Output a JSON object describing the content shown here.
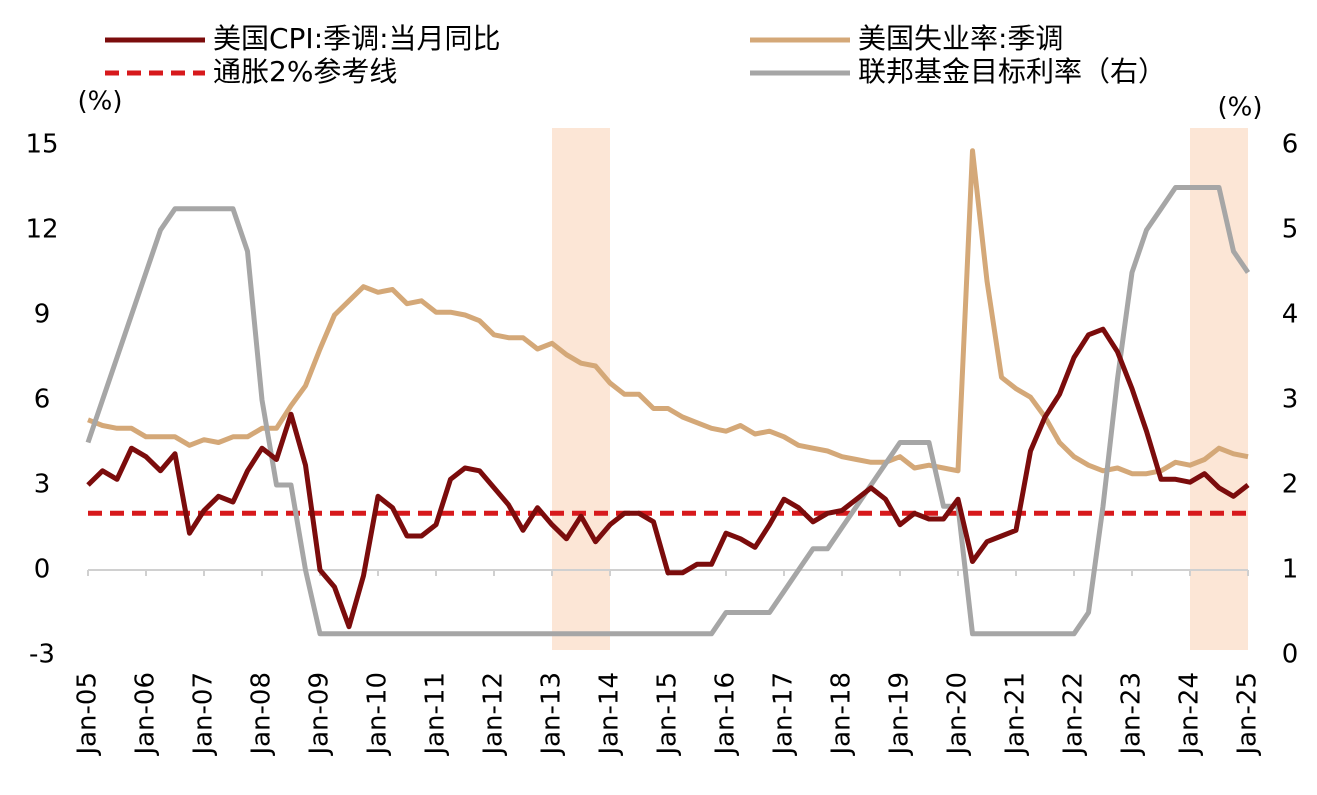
{
  "chart_data": {
    "type": "line",
    "y_label": "(%)",
    "y2_label": "(%)",
    "categories": [
      "Jan-05",
      null,
      null,
      null,
      "Jan-06",
      null,
      null,
      null,
      "Jan-07",
      null,
      null,
      null,
      "Jan-08",
      null,
      null,
      null,
      "Jan-09",
      null,
      null,
      null,
      "Jan-10",
      null,
      null,
      null,
      "Jan-11",
      null,
      null,
      null,
      "Jan-12",
      null,
      null,
      null,
      "Jan-13",
      null,
      null,
      null,
      "Jan-14",
      null,
      null,
      null,
      "Jan-15",
      null,
      null,
      null,
      "Jan-16",
      null,
      null,
      null,
      "Jan-17",
      null,
      null,
      null,
      "Jan-18",
      null,
      null,
      null,
      "Jan-19",
      null,
      null,
      null,
      "Jan-20",
      null,
      null,
      null,
      "Jan-21",
      null,
      null,
      null,
      "Jan-22",
      null,
      null,
      null,
      "Jan-23",
      null,
      null,
      null,
      "Jan-24",
      null,
      null,
      null,
      "Jan-25"
    ],
    "ylim": [
      -3,
      15
    ],
    "yticks": [
      -3,
      0,
      3,
      6,
      9,
      12,
      15
    ],
    "y2lim": [
      0,
      6
    ],
    "y2ticks": [
      0,
      1,
      2,
      3,
      4,
      5,
      6
    ],
    "highlight_ranges": [
      {
        "from": "Jan-13",
        "to": "Jan-14"
      },
      {
        "from": "Jan-24",
        "to": "Jan-25"
      }
    ],
    "series": [
      {
        "name": "美国CPI:季调:当月同比",
        "color": "#7b0c0c",
        "dash": false,
        "values": [
          3.0,
          3.5,
          3.2,
          4.3,
          4.0,
          3.5,
          4.1,
          1.3,
          2.1,
          2.6,
          2.4,
          3.5,
          4.3,
          3.9,
          5.5,
          3.7,
          0.0,
          -0.6,
          -2.0,
          -0.2,
          2.6,
          2.2,
          1.2,
          1.2,
          1.6,
          3.2,
          3.6,
          3.5,
          2.9,
          2.3,
          1.4,
          2.2,
          1.6,
          1.1,
          1.9,
          1.0,
          1.6,
          2.0,
          2.0,
          1.7,
          -0.1,
          -0.1,
          0.2,
          0.2,
          1.3,
          1.1,
          0.8,
          1.6,
          2.5,
          2.2,
          1.7,
          2.0,
          2.1,
          2.5,
          2.9,
          2.5,
          1.6,
          2.0,
          1.8,
          1.8,
          2.5,
          0.3,
          1.0,
          1.2,
          1.4,
          4.2,
          5.4,
          6.2,
          7.5,
          8.3,
          8.5,
          7.7,
          6.4,
          4.9,
          3.2,
          3.2,
          3.1,
          3.4,
          2.9,
          2.6,
          3.0
        ]
      },
      {
        "name": "美国失业率:季调",
        "color": "#d4a878",
        "dash": false,
        "values": [
          5.3,
          5.1,
          5.0,
          5.0,
          4.7,
          4.7,
          4.7,
          4.4,
          4.6,
          4.5,
          4.7,
          4.7,
          5.0,
          5.0,
          5.8,
          6.5,
          7.8,
          9.0,
          9.5,
          10.0,
          9.8,
          9.9,
          9.4,
          9.5,
          9.1,
          9.1,
          9.0,
          8.8,
          8.3,
          8.2,
          8.2,
          7.8,
          8.0,
          7.6,
          7.3,
          7.2,
          6.6,
          6.2,
          6.2,
          5.7,
          5.7,
          5.4,
          5.2,
          5.0,
          4.9,
          5.1,
          4.8,
          4.9,
          4.7,
          4.4,
          4.3,
          4.2,
          4.0,
          3.9,
          3.8,
          3.8,
          4.0,
          3.6,
          3.7,
          3.6,
          3.5,
          14.8,
          10.2,
          6.8,
          6.4,
          6.1,
          5.4,
          4.5,
          4.0,
          3.7,
          3.5,
          3.6,
          3.4,
          3.4,
          3.5,
          3.8,
          3.7,
          3.9,
          4.3,
          4.1,
          4.0
        ]
      },
      {
        "name": "通胀2%参考线",
        "color": "#d7191c",
        "dash": true,
        "values": [
          2,
          2,
          2,
          2,
          2,
          2,
          2,
          2,
          2,
          2,
          2,
          2,
          2,
          2,
          2,
          2,
          2,
          2,
          2,
          2,
          2,
          2,
          2,
          2,
          2,
          2,
          2,
          2,
          2,
          2,
          2,
          2,
          2,
          2,
          2,
          2,
          2,
          2,
          2,
          2,
          2,
          2,
          2,
          2,
          2,
          2,
          2,
          2,
          2,
          2,
          2,
          2,
          2,
          2,
          2,
          2,
          2,
          2,
          2,
          2,
          2,
          2,
          2,
          2,
          2,
          2,
          2,
          2,
          2,
          2,
          2,
          2,
          2,
          2,
          2,
          2,
          2,
          2,
          2,
          2,
          2
        ]
      },
      {
        "name": "联邦基金目标利率（右）",
        "color": "#a6a6a6",
        "dash": false,
        "axis": "y2",
        "values": [
          2.5,
          3.0,
          3.5,
          4.0,
          4.5,
          5.0,
          5.25,
          5.25,
          5.25,
          5.25,
          5.25,
          4.75,
          3.0,
          2.0,
          2.0,
          1.0,
          0.25,
          0.25,
          0.25,
          0.25,
          0.25,
          0.25,
          0.25,
          0.25,
          0.25,
          0.25,
          0.25,
          0.25,
          0.25,
          0.25,
          0.25,
          0.25,
          0.25,
          0.25,
          0.25,
          0.25,
          0.25,
          0.25,
          0.25,
          0.25,
          0.25,
          0.25,
          0.25,
          0.25,
          0.5,
          0.5,
          0.5,
          0.5,
          0.75,
          1.0,
          1.25,
          1.25,
          1.5,
          1.75,
          2.0,
          2.25,
          2.5,
          2.5,
          2.5,
          1.75,
          1.75,
          0.25,
          0.25,
          0.25,
          0.25,
          0.25,
          0.25,
          0.25,
          0.25,
          0.5,
          1.75,
          3.25,
          4.5,
          5.0,
          5.25,
          5.5,
          5.5,
          5.5,
          5.5,
          4.75,
          4.5
        ]
      }
    ]
  }
}
